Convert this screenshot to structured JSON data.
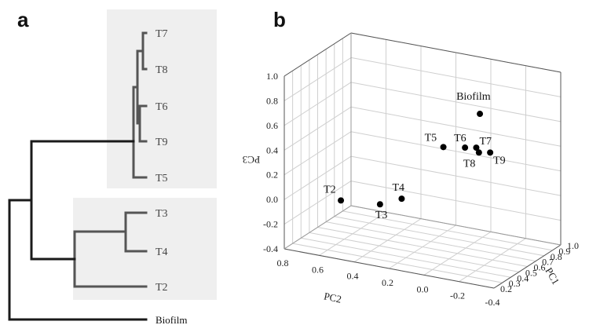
{
  "panels": {
    "a": "a",
    "b": "b"
  },
  "chart_data": [
    {
      "type": "dendrogram",
      "leaves": [
        "T7",
        "T8",
        "T6",
        "T9",
        "T5",
        "T3",
        "T4",
        "T2",
        "Biofilm"
      ],
      "clusters": [
        [
          "T7",
          "T8",
          "T6",
          "T9",
          "T5"
        ],
        [
          "T3",
          "T4",
          "T2"
        ]
      ],
      "highlight_color": "#efefef"
    },
    {
      "type": "scatter3d",
      "xlabel": "PC2",
      "ylabel": "PC1",
      "zlabel": "PC3",
      "x_ticks": [
        "0.8",
        "0.6",
        "0.4",
        "0.2",
        "0.0",
        "-0.2",
        "-0.4"
      ],
      "y_ticks": [
        "0.2",
        "0.3",
        "0.4",
        "0.5",
        "0.6",
        "0.7",
        "0.8",
        "0.9",
        "1.0"
      ],
      "z_ticks": [
        "1.0",
        "0.8",
        "0.6",
        "0.4",
        "0.2",
        "0.0",
        "-0.2",
        "-0.4"
      ],
      "grid": true,
      "points": [
        {
          "label": "Biofilm",
          "pc1": 0.45,
          "pc2": -0.2,
          "pc3": 0.85
        },
        {
          "label": "T2",
          "pc1": 0.25,
          "pc2": 0.5,
          "pc3": 0.05
        },
        {
          "label": "T3",
          "pc1": 0.3,
          "pc2": 0.3,
          "pc3": 0.05
        },
        {
          "label": "T4",
          "pc1": 0.35,
          "pc2": 0.2,
          "pc3": 0.1
        },
        {
          "label": "T5",
          "pc1": 0.85,
          "pc2": 0.2,
          "pc3": 0.3
        },
        {
          "label": "T6",
          "pc1": 0.9,
          "pc2": 0.1,
          "pc3": 0.3
        },
        {
          "label": "T7",
          "pc1": 0.93,
          "pc2": 0.05,
          "pc3": 0.3
        },
        {
          "label": "T8",
          "pc1": 0.92,
          "pc2": 0.03,
          "pc3": 0.27
        },
        {
          "label": "T9",
          "pc1": 0.95,
          "pc2": -0.02,
          "pc3": 0.27
        }
      ]
    }
  ]
}
